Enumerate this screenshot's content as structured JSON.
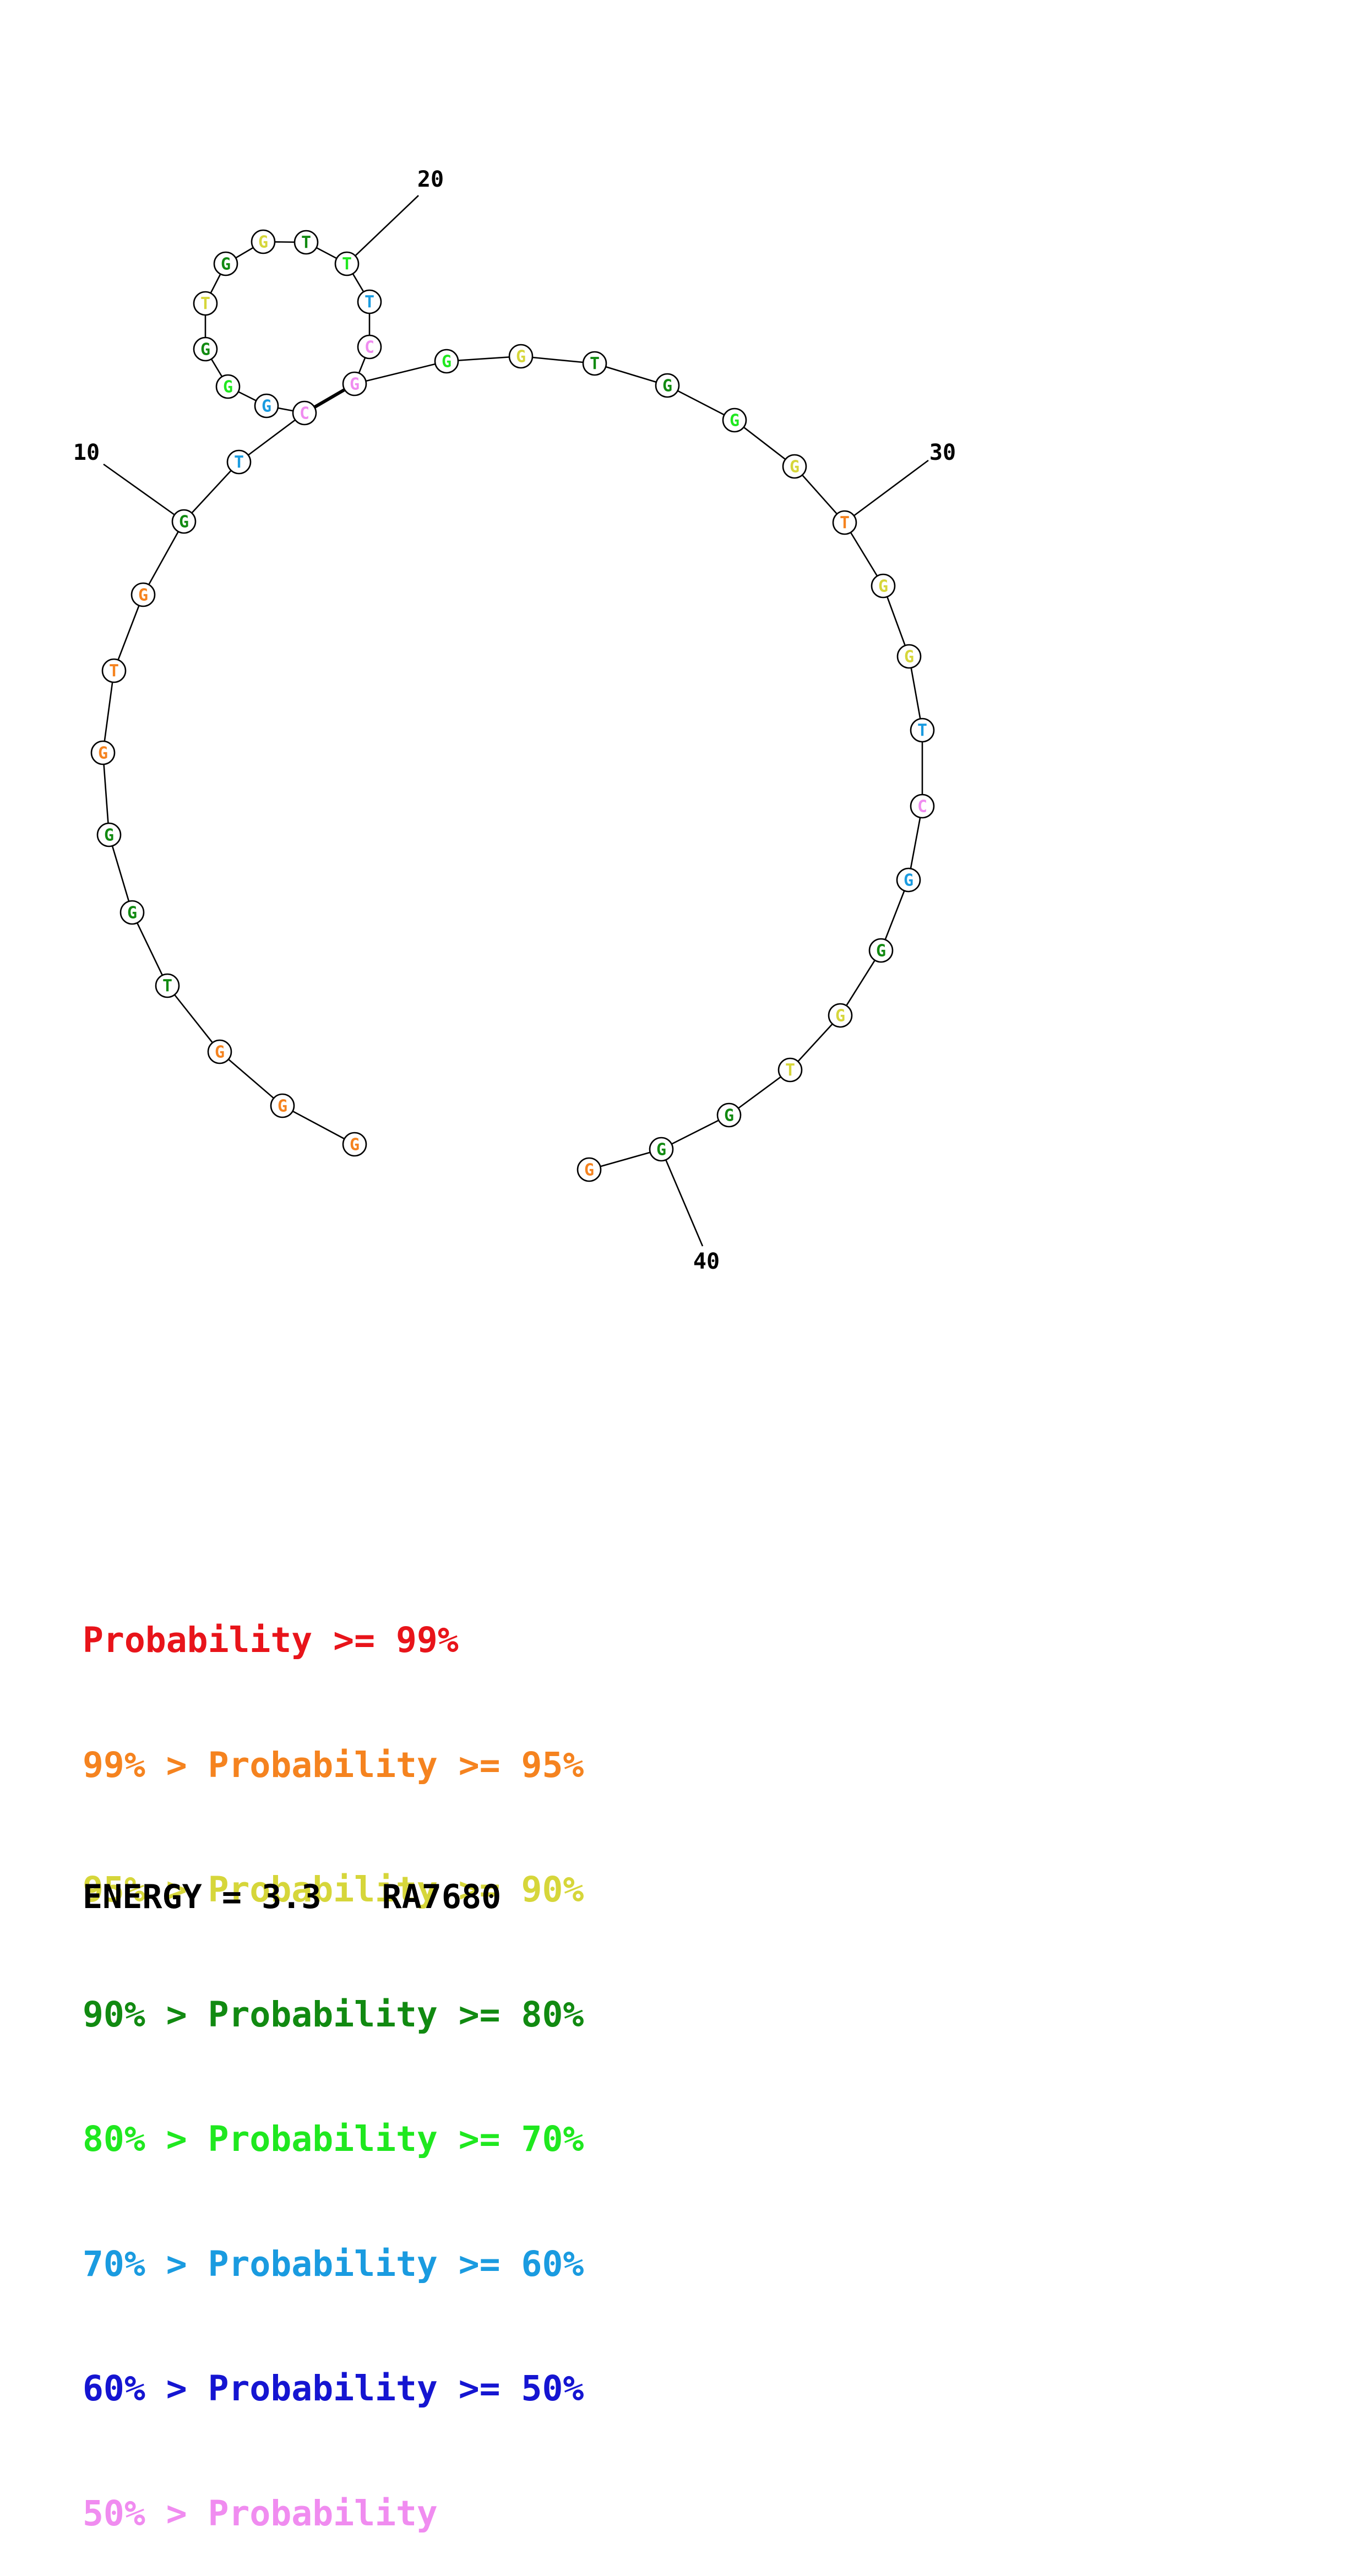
{
  "colors": {
    "c99": "#e8141a",
    "c95": "#f5831f",
    "c90": "#d6d63a",
    "c80": "#118a11",
    "c70": "#1fe81f",
    "c60": "#1a9be0",
    "c50": "#1515d1",
    "clow": "#f08cf0"
  },
  "structure": {
    "nucleotides": [
      {
        "base": "G",
        "color": "c95"
      },
      {
        "base": "G",
        "color": "c95"
      },
      {
        "base": "G",
        "color": "c95"
      },
      {
        "base": "T",
        "color": "c80"
      },
      {
        "base": "G",
        "color": "c80"
      },
      {
        "base": "G",
        "color": "c80"
      },
      {
        "base": "G",
        "color": "c95"
      },
      {
        "base": "T",
        "color": "c95"
      },
      {
        "base": "G",
        "color": "c95"
      },
      {
        "base": "G",
        "color": "c80"
      },
      {
        "base": "T",
        "color": "c60"
      },
      {
        "base": "C",
        "color": "clow"
      },
      {
        "base": "G",
        "color": "c60"
      },
      {
        "base": "G",
        "color": "c70"
      },
      {
        "base": "G",
        "color": "c80"
      },
      {
        "base": "T",
        "color": "c90"
      },
      {
        "base": "G",
        "color": "c80"
      },
      {
        "base": "G",
        "color": "c90"
      },
      {
        "base": "T",
        "color": "c80"
      },
      {
        "base": "T",
        "color": "c70"
      },
      {
        "base": "T",
        "color": "c60"
      },
      {
        "base": "C",
        "color": "clow"
      },
      {
        "base": "G",
        "color": "clow"
      },
      {
        "base": "G",
        "color": "c70"
      },
      {
        "base": "G",
        "color": "c90"
      },
      {
        "base": "T",
        "color": "c80"
      },
      {
        "base": "G",
        "color": "c80"
      },
      {
        "base": "G",
        "color": "c70"
      },
      {
        "base": "G",
        "color": "c90"
      },
      {
        "base": "T",
        "color": "c95"
      },
      {
        "base": "G",
        "color": "c90"
      },
      {
        "base": "G",
        "color": "c90"
      },
      {
        "base": "T",
        "color": "c60"
      },
      {
        "base": "C",
        "color": "clow"
      },
      {
        "base": "G",
        "color": "c60"
      },
      {
        "base": "G",
        "color": "c80"
      },
      {
        "base": "G",
        "color": "c90"
      },
      {
        "base": "T",
        "color": "c90"
      },
      {
        "base": "G",
        "color": "c80"
      },
      {
        "base": "G",
        "color": "c80"
      },
      {
        "base": "G",
        "color": "c95"
      }
    ],
    "pairs": [
      [
        12,
        23
      ]
    ],
    "ticks": [
      {
        "index": 10,
        "label": "10"
      },
      {
        "index": 20,
        "label": "20"
      },
      {
        "index": 30,
        "label": "30"
      },
      {
        "index": 40,
        "label": "40"
      }
    ]
  },
  "legend": [
    {
      "prefix": "",
      "text": "Probability >= 99%",
      "color": "c99"
    },
    {
      "prefix": "99% > ",
      "text": "Probability >= 95%",
      "color": "c95"
    },
    {
      "prefix": "95% > ",
      "text": "Probability >= 90%",
      "color": "c90"
    },
    {
      "prefix": "90% > ",
      "text": "Probability >= 80%",
      "color": "c80"
    },
    {
      "prefix": "80% > ",
      "text": "Probability >= 70%",
      "color": "c70"
    },
    {
      "prefix": "70% > ",
      "text": "Probability >= 60%",
      "color": "c60"
    },
    {
      "prefix": "60% > ",
      "text": "Probability >= 50%",
      "color": "c50"
    },
    {
      "prefix": "50% > ",
      "text": "Probability",
      "color": "clow"
    }
  ],
  "footer": {
    "energy": "ENERGY = 3.3",
    "id": "RA7680"
  }
}
